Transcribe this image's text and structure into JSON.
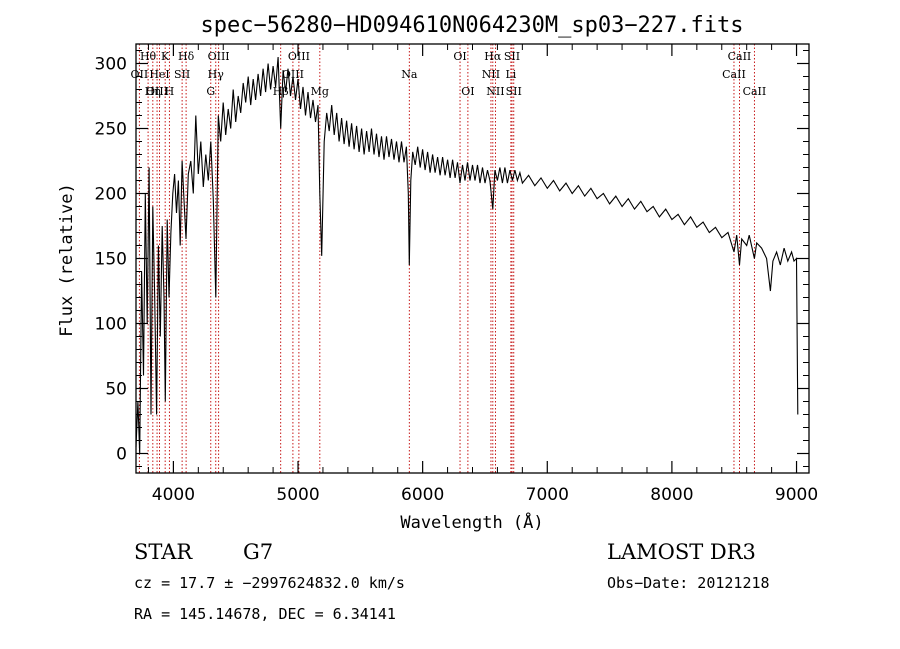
{
  "chart_data": {
    "type": "line",
    "title": "spec−56280−HD094610N064230M_sp03−227.fits",
    "xlabel": "Wavelength (Å)",
    "ylabel": "Flux (relative)",
    "xlim": [
      3700,
      9100
    ],
    "ylim": [
      -15,
      315
    ],
    "xticks": [
      4000,
      5000,
      6000,
      7000,
      8000,
      9000
    ],
    "yticks": [
      0,
      50,
      100,
      150,
      200,
      250,
      300
    ],
    "series": [
      {
        "name": "flux",
        "points": [
          [
            3700,
            5
          ],
          [
            3715,
            40
          ],
          [
            3730,
            0
          ],
          [
            3745,
            140
          ],
          [
            3760,
            60
          ],
          [
            3775,
            200
          ],
          [
            3790,
            100
          ],
          [
            3805,
            220
          ],
          [
            3820,
            30
          ],
          [
            3835,
            190
          ],
          [
            3850,
            120
          ],
          [
            3865,
            30
          ],
          [
            3880,
            160
          ],
          [
            3895,
            90
          ],
          [
            3910,
            175
          ],
          [
            3925,
            120
          ],
          [
            3935,
            40
          ],
          [
            3950,
            180
          ],
          [
            3965,
            120
          ],
          [
            3980,
            170
          ],
          [
            3995,
            200
          ],
          [
            4010,
            215
          ],
          [
            4025,
            185
          ],
          [
            4040,
            210
          ],
          [
            4055,
            160
          ],
          [
            4070,
            225
          ],
          [
            4085,
            195
          ],
          [
            4101,
            165
          ],
          [
            4120,
            215
          ],
          [
            4140,
            225
          ],
          [
            4160,
            200
          ],
          [
            4180,
            260
          ],
          [
            4200,
            215
          ],
          [
            4220,
            240
          ],
          [
            4240,
            205
          ],
          [
            4260,
            230
          ],
          [
            4280,
            210
          ],
          [
            4300,
            240
          ],
          [
            4320,
            195
          ],
          [
            4340,
            120
          ],
          [
            4360,
            260
          ],
          [
            4380,
            240
          ],
          [
            4400,
            270
          ],
          [
            4420,
            245
          ],
          [
            4440,
            265
          ],
          [
            4460,
            250
          ],
          [
            4480,
            280
          ],
          [
            4500,
            255
          ],
          [
            4520,
            275
          ],
          [
            4540,
            262
          ],
          [
            4560,
            285
          ],
          [
            4580,
            270
          ],
          [
            4600,
            290
          ],
          [
            4620,
            268
          ],
          [
            4640,
            288
          ],
          [
            4660,
            272
          ],
          [
            4680,
            292
          ],
          [
            4700,
            275
          ],
          [
            4720,
            296
          ],
          [
            4740,
            278
          ],
          [
            4760,
            300
          ],
          [
            4780,
            280
          ],
          [
            4800,
            298
          ],
          [
            4820,
            282
          ],
          [
            4840,
            305
          ],
          [
            4861,
            250
          ],
          [
            4880,
            295
          ],
          [
            4900,
            278
          ],
          [
            4920,
            296
          ],
          [
            4940,
            275
          ],
          [
            4960,
            290
          ],
          [
            4980,
            272
          ],
          [
            5000,
            288
          ],
          [
            5020,
            265
          ],
          [
            5040,
            282
          ],
          [
            5060,
            260
          ],
          [
            5080,
            278
          ],
          [
            5100,
            258
          ],
          [
            5120,
            272
          ],
          [
            5140,
            255
          ],
          [
            5160,
            268
          ],
          [
            5175,
            200
          ],
          [
            5190,
            152
          ],
          [
            5210,
            240
          ],
          [
            5230,
            262
          ],
          [
            5250,
            248
          ],
          [
            5270,
            268
          ],
          [
            5290,
            245
          ],
          [
            5310,
            262
          ],
          [
            5330,
            240
          ],
          [
            5350,
            258
          ],
          [
            5370,
            238
          ],
          [
            5390,
            256
          ],
          [
            5410,
            236
          ],
          [
            5430,
            254
          ],
          [
            5450,
            234
          ],
          [
            5470,
            252
          ],
          [
            5490,
            232
          ],
          [
            5510,
            250
          ],
          [
            5530,
            230
          ],
          [
            5550,
            248
          ],
          [
            5570,
            232
          ],
          [
            5590,
            250
          ],
          [
            5610,
            230
          ],
          [
            5630,
            246
          ],
          [
            5650,
            228
          ],
          [
            5670,
            244
          ],
          [
            5690,
            226
          ],
          [
            5710,
            244
          ],
          [
            5730,
            228
          ],
          [
            5750,
            242
          ],
          [
            5770,
            226
          ],
          [
            5790,
            240
          ],
          [
            5810,
            224
          ],
          [
            5830,
            240
          ],
          [
            5850,
            224
          ],
          [
            5870,
            236
          ],
          [
            5885,
            200
          ],
          [
            5893,
            145
          ],
          [
            5905,
            210
          ],
          [
            5920,
            232
          ],
          [
            5940,
            222
          ],
          [
            5960,
            236
          ],
          [
            5980,
            220
          ],
          [
            6000,
            234
          ],
          [
            6020,
            218
          ],
          [
            6040,
            232
          ],
          [
            6060,
            216
          ],
          [
            6080,
            230
          ],
          [
            6100,
            216
          ],
          [
            6120,
            228
          ],
          [
            6140,
            214
          ],
          [
            6160,
            228
          ],
          [
            6180,
            214
          ],
          [
            6200,
            226
          ],
          [
            6220,
            212
          ],
          [
            6240,
            226
          ],
          [
            6260,
            212
          ],
          [
            6280,
            224
          ],
          [
            6300,
            208
          ],
          [
            6320,
            222
          ],
          [
            6340,
            210
          ],
          [
            6360,
            224
          ],
          [
            6380,
            210
          ],
          [
            6400,
            222
          ],
          [
            6420,
            210
          ],
          [
            6440,
            222
          ],
          [
            6460,
            208
          ],
          [
            6480,
            220
          ],
          [
            6500,
            208
          ],
          [
            6520,
            218
          ],
          [
            6540,
            210
          ],
          [
            6563,
            188
          ],
          [
            6580,
            218
          ],
          [
            6600,
            210
          ],
          [
            6620,
            220
          ],
          [
            6640,
            208
          ],
          [
            6660,
            220
          ],
          [
            6680,
            208
          ],
          [
            6700,
            218
          ],
          [
            6720,
            210
          ],
          [
            6740,
            218
          ],
          [
            6760,
            210
          ],
          [
            6780,
            216
          ],
          [
            6800,
            208
          ],
          [
            6850,
            214
          ],
          [
            6900,
            206
          ],
          [
            6950,
            212
          ],
          [
            7000,
            204
          ],
          [
            7050,
            210
          ],
          [
            7100,
            202
          ],
          [
            7150,
            208
          ],
          [
            7200,
            200
          ],
          [
            7250,
            206
          ],
          [
            7300,
            198
          ],
          [
            7350,
            204
          ],
          [
            7400,
            196
          ],
          [
            7450,
            200
          ],
          [
            7500,
            192
          ],
          [
            7550,
            198
          ],
          [
            7600,
            190
          ],
          [
            7650,
            196
          ],
          [
            7700,
            188
          ],
          [
            7750,
            194
          ],
          [
            7800,
            186
          ],
          [
            7850,
            190
          ],
          [
            7900,
            182
          ],
          [
            7950,
            188
          ],
          [
            8000,
            180
          ],
          [
            8050,
            184
          ],
          [
            8100,
            176
          ],
          [
            8150,
            182
          ],
          [
            8200,
            174
          ],
          [
            8250,
            178
          ],
          [
            8300,
            170
          ],
          [
            8350,
            174
          ],
          [
            8400,
            166
          ],
          [
            8450,
            170
          ],
          [
            8498,
            155
          ],
          [
            8520,
            168
          ],
          [
            8542,
            145
          ],
          [
            8560,
            165
          ],
          [
            8600,
            160
          ],
          [
            8620,
            168
          ],
          [
            8662,
            150
          ],
          [
            8680,
            162
          ],
          [
            8720,
            158
          ],
          [
            8760,
            150
          ],
          [
            8790,
            125
          ],
          [
            8810,
            148
          ],
          [
            8840,
            155
          ],
          [
            8870,
            145
          ],
          [
            8900,
            158
          ],
          [
            8930,
            148
          ],
          [
            8960,
            155
          ],
          [
            8980,
            148
          ],
          [
            9000,
            150
          ],
          [
            9010,
            30
          ]
        ]
      }
    ],
    "spectral_lines": [
      {
        "label": "Hθ",
        "wavelength": 3797,
        "row": 0
      },
      {
        "label": "OII",
        "wavelength": 3727,
        "row": 1
      },
      {
        "label": "OIII",
        "wavelength": 3869,
        "row": 2
      },
      {
        "label": "K",
        "wavelength": 3934,
        "row": 0
      },
      {
        "label": "HeI",
        "wavelength": 3889,
        "row": 1
      },
      {
        "label": "Hη",
        "wavelength": 3835,
        "row": 2
      },
      {
        "label": "SII",
        "wavelength": 4070,
        "row": 1
      },
      {
        "label": "H",
        "wavelength": 3968,
        "row": 2
      },
      {
        "label": "Hδ",
        "wavelength": 4102,
        "row": 0
      },
      {
        "label": "OIII",
        "wavelength": 4363,
        "row": 0
      },
      {
        "label": "Hγ",
        "wavelength": 4340,
        "row": 1
      },
      {
        "label": "G",
        "wavelength": 4300,
        "row": 2
      },
      {
        "label": "OIII",
        "wavelength": 5007,
        "row": 0
      },
      {
        "label": "OIII",
        "wavelength": 4959,
        "row": 1
      },
      {
        "label": "Hβ",
        "wavelength": 4861,
        "row": 2
      },
      {
        "label": "Mg",
        "wavelength": 5175,
        "row": 2
      },
      {
        "label": "Na",
        "wavelength": 5893,
        "row": 1
      },
      {
        "label": "OI",
        "wavelength": 6300,
        "row": 0
      },
      {
        "label": "OI",
        "wavelength": 6363,
        "row": 2
      },
      {
        "label": "Hα",
        "wavelength": 6563,
        "row": 0
      },
      {
        "label": "SII",
        "wavelength": 6717,
        "row": 0
      },
      {
        "label": "NII",
        "wavelength": 6548,
        "row": 1
      },
      {
        "label": "Li",
        "wavelength": 6708,
        "row": 1
      },
      {
        "label": "NII",
        "wavelength": 6584,
        "row": 2
      },
      {
        "label": "SII",
        "wavelength": 6731,
        "row": 2
      },
      {
        "label": "CaII",
        "wavelength": 8542,
        "row": 0
      },
      {
        "label": "CaII",
        "wavelength": 8498,
        "row": 1
      },
      {
        "label": "CaII",
        "wavelength": 8662,
        "row": 2
      }
    ],
    "line_color": "#c00000",
    "series_color": "#000000"
  },
  "info": {
    "object_class": "STAR",
    "subclass": "G7",
    "survey": "LAMOST DR3",
    "redshift": "cz = 17.7 ± −2997624832.0 km/s",
    "obs_date": "Obs−Date: 20121218",
    "coords": "RA = 145.14678, DEC =   6.34141"
  }
}
